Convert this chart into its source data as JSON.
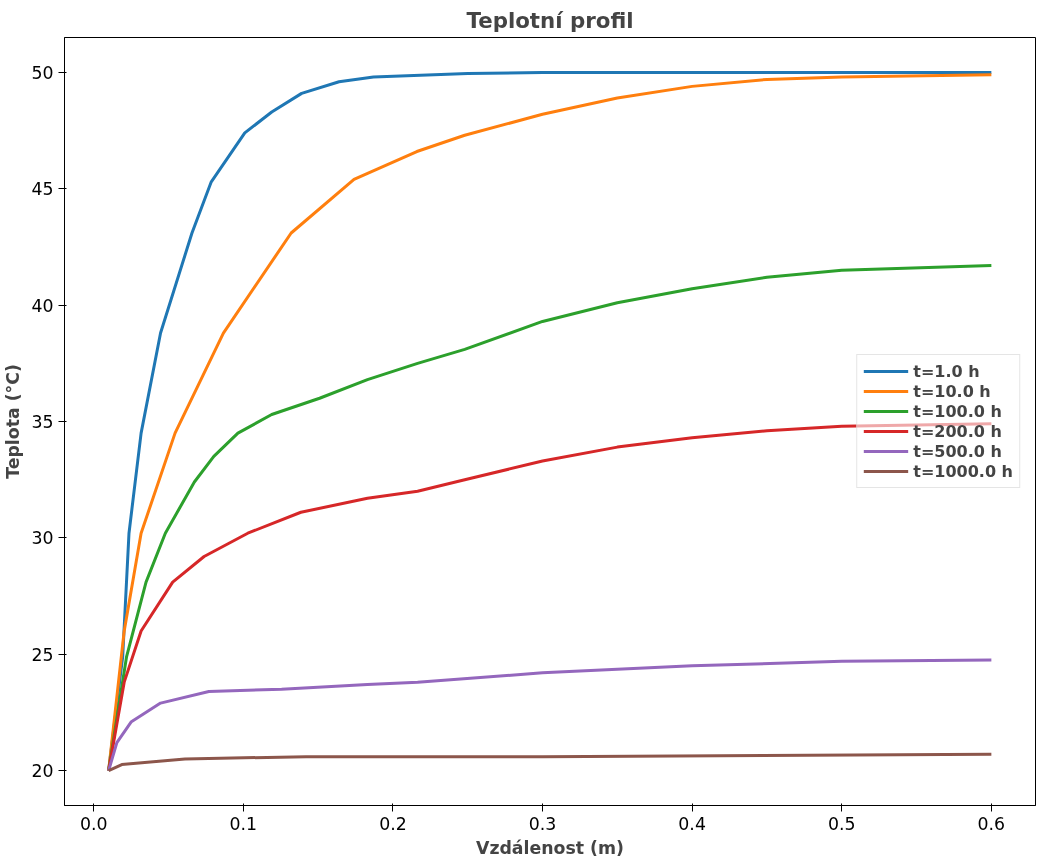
{
  "chart_data": {
    "type": "line",
    "title": "Teplotní profil",
    "xlabel": "Vzdálenost (m)",
    "ylabel": "Teplota (°C)",
    "xlim": [
      -0.0195,
      0.6295
    ],
    "ylim": [
      18.5,
      51.5
    ],
    "xticks": [
      {
        "value": 0,
        "label": "0.0"
      },
      0.1,
      0.2,
      0.3,
      0.4,
      0.5,
      0.6
    ],
    "yticks": [
      20,
      25,
      30,
      35,
      40,
      45,
      50
    ],
    "grid": false,
    "legend": "right",
    "line_style": "solid",
    "marker": "none",
    "series": [
      {
        "name": "t=1.0 h",
        "color": "#1f77b4",
        "x": [
          0.01,
          0.0194,
          0.0236,
          0.0317,
          0.0447,
          0.0657,
          0.0786,
          0.101,
          0.119,
          0.139,
          0.164,
          0.187,
          0.25,
          0.3,
          0.4,
          0.5,
          0.6
        ],
        "values": [
          20,
          24.9,
          30.2,
          34.5,
          38.8,
          43.1,
          45.3,
          47.4,
          48.3,
          49.1,
          49.6,
          49.8,
          49.95,
          50,
          50,
          50,
          50
        ]
      },
      {
        "name": "t=10.0 h",
        "color": "#ff7f0e",
        "x": [
          0.01,
          0.0204,
          0.0317,
          0.0544,
          0.0867,
          0.132,
          0.174,
          0.216,
          0.248,
          0.3,
          0.35,
          0.4,
          0.45,
          0.5,
          0.6
        ],
        "values": [
          20,
          26.0,
          30.2,
          34.5,
          38.8,
          43.1,
          45.4,
          46.6,
          47.3,
          48.2,
          48.9,
          49.4,
          49.7,
          49.8,
          49.9
        ]
      },
      {
        "name": "t=100.0 h",
        "color": "#2ca02c",
        "x": [
          0.01,
          0.022,
          0.035,
          0.0479,
          0.0673,
          0.0803,
          0.0964,
          0.119,
          0.151,
          0.183,
          0.2165,
          0.248,
          0.3,
          0.35,
          0.4,
          0.45,
          0.5,
          0.6
        ],
        "values": [
          20,
          24.9,
          28.1,
          30.2,
          32.4,
          33.5,
          34.5,
          35.3,
          36.0,
          36.8,
          37.5,
          38.1,
          39.3,
          40.1,
          40.7,
          41.2,
          41.5,
          41.7
        ]
      },
      {
        "name": "t=200.0 h",
        "color": "#d62728",
        "x": [
          0.01,
          0.0204,
          0.0317,
          0.0528,
          0.0738,
          0.103,
          0.1385,
          0.183,
          0.2165,
          0.248,
          0.3,
          0.35,
          0.4,
          0.45,
          0.5,
          0.6
        ],
        "values": [
          20,
          23.8,
          26.0,
          28.1,
          29.2,
          30.2,
          31.1,
          31.7,
          32.0,
          32.5,
          33.3,
          33.9,
          34.3,
          34.6,
          34.8,
          34.9
        ]
      },
      {
        "name": "t=500.0 h",
        "color": "#9467bd",
        "x": [
          0.01,
          0.0155,
          0.0252,
          0.0447,
          0.077,
          0.1256,
          0.183,
          0.2165,
          0.3,
          0.4,
          0.5,
          0.6
        ],
        "values": [
          20,
          21.2,
          22.1,
          22.9,
          23.4,
          23.5,
          23.7,
          23.8,
          24.2,
          24.5,
          24.7,
          24.75
        ]
      },
      {
        "name": "t=1000.0 h",
        "color": "#8c564b",
        "x": [
          0.01,
          0.0188,
          0.061,
          0.142,
          0.3,
          0.6
        ],
        "values": [
          20,
          20.26,
          20.5,
          20.6,
          20.6,
          20.7
        ]
      }
    ]
  }
}
